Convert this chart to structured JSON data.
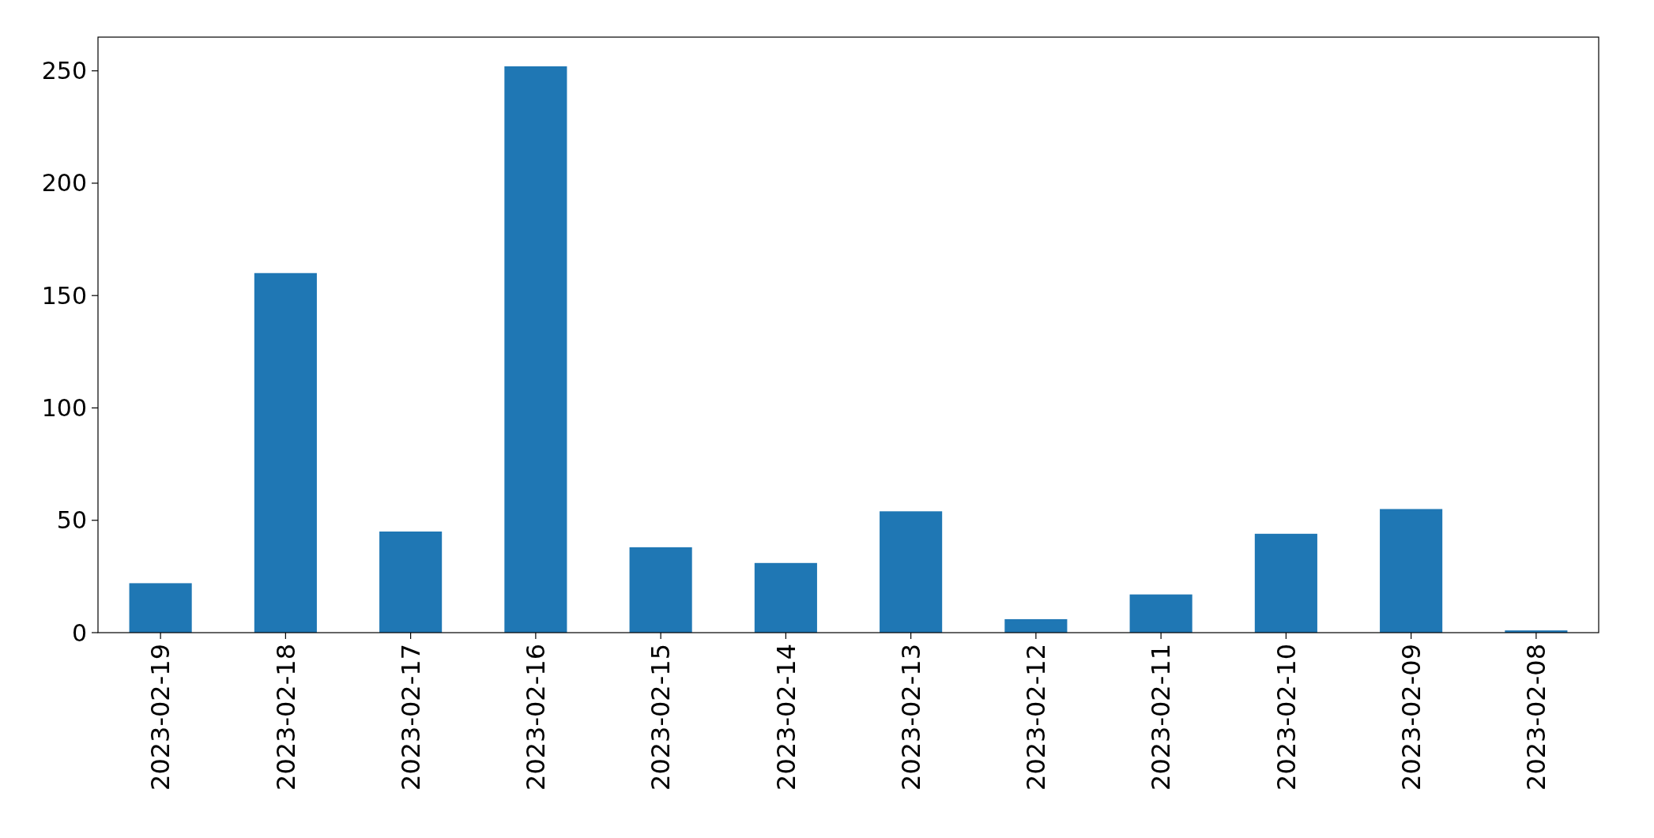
{
  "chart_data": {
    "type": "bar",
    "categories": [
      "2023-02-19",
      "2023-02-18",
      "2023-02-17",
      "2023-02-16",
      "2023-02-15",
      "2023-02-14",
      "2023-02-13",
      "2023-02-12",
      "2023-02-11",
      "2023-02-10",
      "2023-02-09",
      "2023-02-08"
    ],
    "values": [
      22,
      160,
      45,
      252,
      38,
      31,
      54,
      6,
      17,
      44,
      55,
      1
    ],
    "color": "#1f77b4",
    "ylim": [
      0,
      265
    ],
    "yticks": [
      0,
      50,
      100,
      150,
      200,
      250
    ],
    "grid": false
  }
}
